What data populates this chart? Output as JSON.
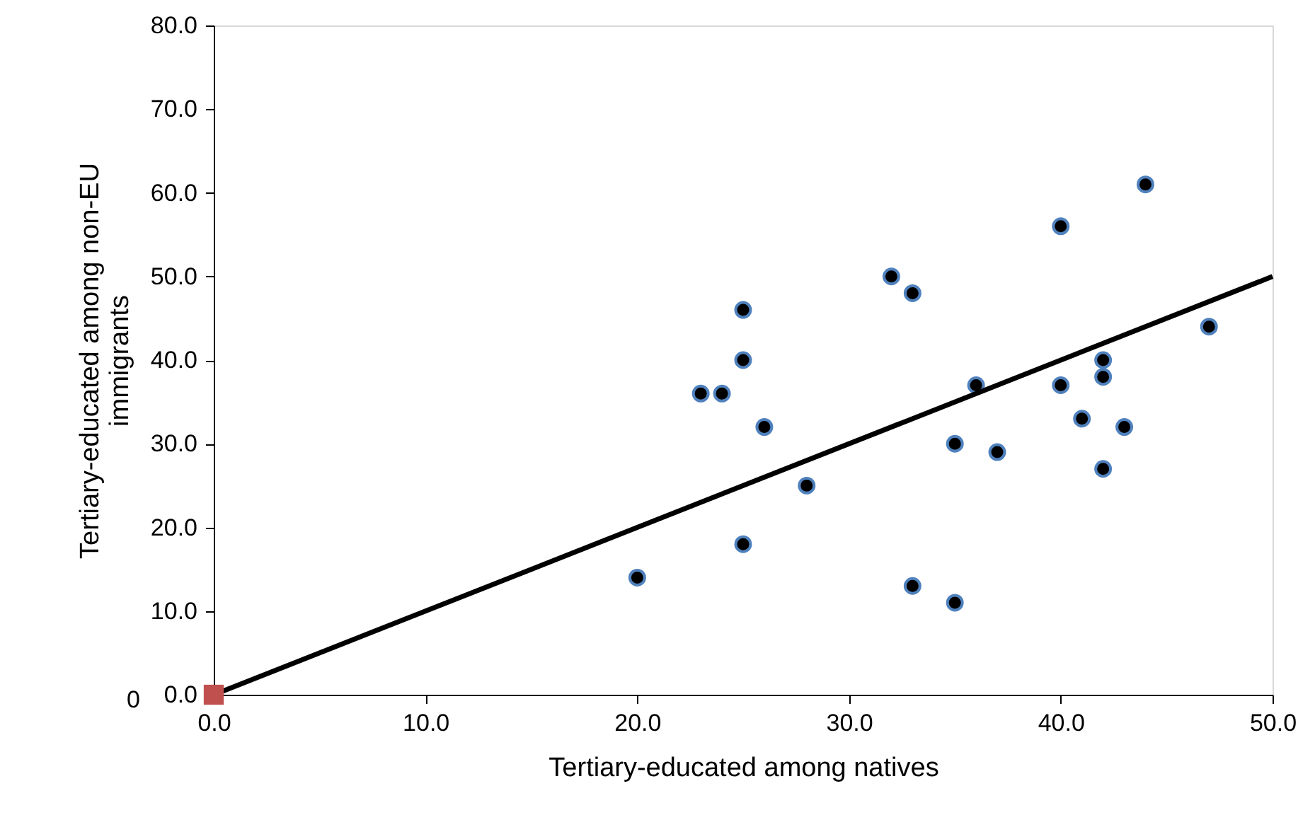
{
  "chart_data": {
    "type": "scatter",
    "xlabel": "Tertiary-educated among natives",
    "ylabel": "Tertiary-educated among non-EU immigrants",
    "xlim": [
      0,
      50
    ],
    "xticks": [
      {
        "value": 0,
        "label": "0.0"
      },
      {
        "value": 10,
        "label": "10.0"
      },
      {
        "value": 20,
        "label": "20.0"
      },
      {
        "value": 30,
        "label": "30.0"
      },
      {
        "value": 40,
        "label": "40.0"
      },
      {
        "value": 50,
        "label": "50.0"
      }
    ],
    "ylim": [
      0,
      80
    ],
    "yticks": [
      {
        "value": 0,
        "label": "0.0"
      },
      {
        "value": 10,
        "label": "10.0"
      },
      {
        "value": 20,
        "label": "20.0"
      },
      {
        "value": 30,
        "label": "30.0"
      },
      {
        "value": 40,
        "label": "40.0"
      },
      {
        "value": 50,
        "label": "50.0"
      },
      {
        "value": 60,
        "label": "60.0"
      },
      {
        "value": 70,
        "label": "70.0"
      },
      {
        "value": 80,
        "label": "80.0"
      }
    ],
    "grid": false,
    "marker": "circle",
    "series": [
      {
        "color": "#000000",
        "x": [
          20,
          23,
          24,
          25,
          25,
          26,
          28,
          25,
          32,
          33,
          33,
          35,
          35,
          36,
          37,
          40,
          40,
          44,
          42,
          42,
          41,
          43,
          42,
          47
        ],
        "values": [
          14,
          36,
          36,
          46,
          40,
          32,
          25,
          18,
          50,
          48,
          13,
          11,
          30,
          37,
          29,
          56,
          37,
          61,
          40,
          38,
          33,
          32,
          27,
          44
        ]
      },
      {
        "type": "line",
        "marker": "none",
        "color": "#000000",
        "x": [
          0,
          50
        ],
        "values": [
          0,
          50
        ]
      },
      {
        "marker": "square",
        "color": "#c0504d",
        "x": [
          0
        ],
        "values": [
          0
        ]
      }
    ],
    "annotations": [
      "0"
    ]
  }
}
